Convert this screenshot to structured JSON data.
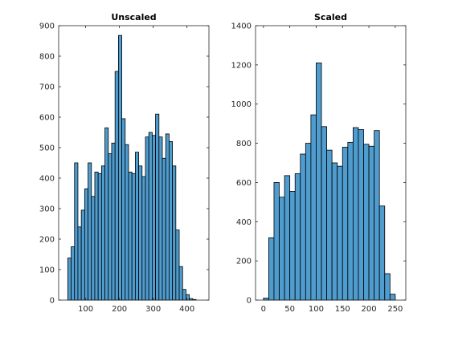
{
  "colors": {
    "bar_fill": "#4f9ccf",
    "bar_edge": "#000000",
    "axis": "#262626"
  },
  "chart_data": [
    {
      "type": "bar",
      "title": "Unscaled",
      "xlabel": "",
      "ylabel": "",
      "xlim": [
        20,
        465
      ],
      "ylim": [
        0,
        900
      ],
      "xticks": [
        100,
        200,
        300,
        400
      ],
      "yticks": [
        0,
        100,
        200,
        300,
        400,
        500,
        600,
        700,
        800,
        900
      ],
      "grid": false,
      "bin_edges": [
        47,
        57,
        67,
        77,
        87,
        97,
        107,
        117,
        127,
        137,
        147,
        157,
        167,
        177,
        187,
        197,
        207,
        217,
        227,
        237,
        247,
        257,
        267,
        277,
        287,
        297,
        307,
        317,
        327,
        337,
        347,
        357,
        367,
        377,
        387,
        397,
        407,
        417,
        427
      ],
      "values": [
        138,
        175,
        450,
        240,
        295,
        365,
        450,
        340,
        420,
        415,
        440,
        565,
        480,
        515,
        750,
        868,
        595,
        510,
        420,
        415,
        485,
        440,
        405,
        535,
        550,
        540,
        610,
        535,
        465,
        545,
        520,
        440,
        230,
        110,
        35,
        18,
        5,
        2
      ]
    },
    {
      "type": "bar",
      "title": "Scaled",
      "xlabel": "",
      "ylabel": "",
      "xlim": [
        -15,
        270
      ],
      "ylim": [
        0,
        1400
      ],
      "xticks": [
        0,
        50,
        100,
        150,
        200,
        250
      ],
      "yticks": [
        0,
        200,
        400,
        600,
        800,
        1000,
        1200,
        1400
      ],
      "grid": false,
      "bin_edges": [
        0,
        10,
        20,
        30,
        40,
        50,
        60,
        70,
        80,
        90,
        100,
        110,
        120,
        130,
        140,
        150,
        160,
        170,
        180,
        190,
        200,
        210,
        220,
        230,
        240,
        250
      ],
      "values": [
        10,
        318,
        600,
        525,
        635,
        555,
        645,
        745,
        800,
        945,
        1210,
        885,
        765,
        700,
        683,
        780,
        805,
        880,
        870,
        795,
        785,
        865,
        480,
        135,
        30
      ]
    }
  ]
}
